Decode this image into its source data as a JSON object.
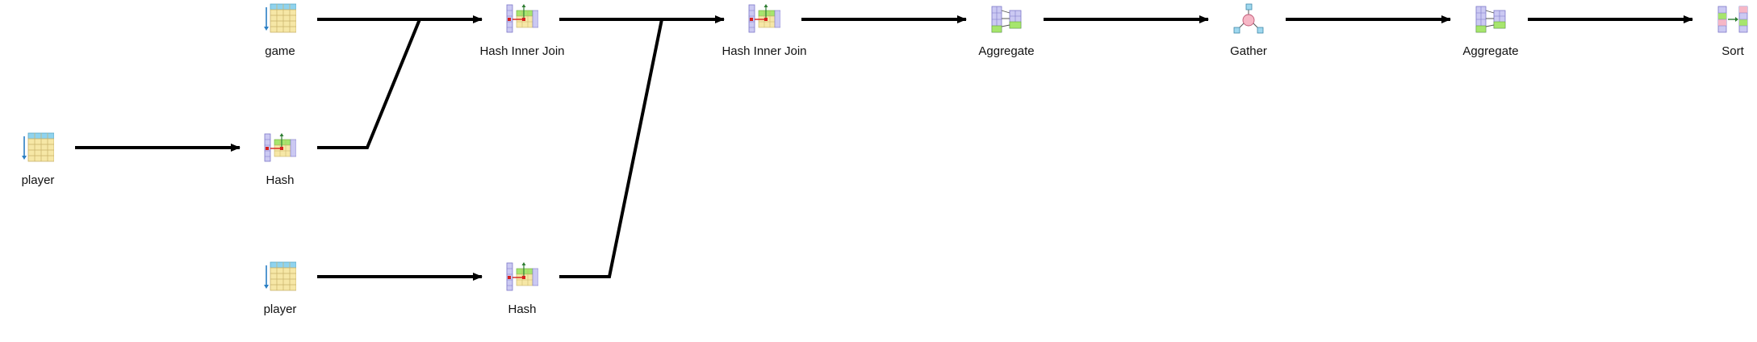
{
  "nodes": {
    "player_scan_1": {
      "label": "player",
      "kind": "seq-scan-icon"
    },
    "hash_1": {
      "label": "Hash",
      "kind": "hash-icon"
    },
    "game_scan": {
      "label": "game",
      "kind": "seq-scan-icon"
    },
    "player_scan_2": {
      "label": "player",
      "kind": "seq-scan-icon"
    },
    "hash_2": {
      "label": "Hash",
      "kind": "hash-icon"
    },
    "hash_join_1": {
      "label": "Hash Inner Join",
      "kind": "hash-join-icon"
    },
    "hash_join_2": {
      "label": "Hash Inner Join",
      "kind": "hash-join-icon"
    },
    "aggregate_1": {
      "label": "Aggregate",
      "kind": "aggregate-icon"
    },
    "gather": {
      "label": "Gather",
      "kind": "gather-icon"
    },
    "aggregate_2": {
      "label": "Aggregate",
      "kind": "aggregate-icon"
    },
    "sort": {
      "label": "Sort",
      "kind": "sort-icon"
    }
  },
  "colors": {
    "edge": "#000000",
    "table_header": "#8fd3ee",
    "table_body": "#f6e7a6",
    "table_line": "#c9b26a",
    "column": "#cbc9f2",
    "column_line": "#7d79c8",
    "hash_red": "#d6201f",
    "green": "#a6e56d",
    "gather_pink": "#f6b7c6",
    "gather_blue": "#9fd8ef",
    "arrow_blue": "#2b7fc4"
  }
}
